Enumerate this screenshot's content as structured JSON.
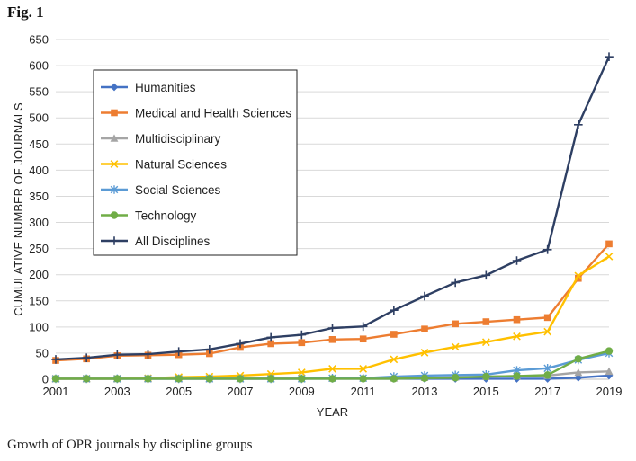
{
  "figure_label": "Fig. 1",
  "caption": "Growth of OPR journals by discipline groups",
  "chart_data": {
    "type": "line",
    "title": "",
    "xlabel": "YEAR",
    "ylabel": "CUMULATIVE NUMBER OF JOURNALS",
    "x": [
      2001,
      2002,
      2003,
      2004,
      2005,
      2006,
      2007,
      2008,
      2009,
      2010,
      2011,
      2012,
      2013,
      2014,
      2015,
      2016,
      2017,
      2018,
      2019
    ],
    "x_tick_labels": [
      "2001",
      "2003",
      "2005",
      "2007",
      "2009",
      "2011",
      "2013",
      "2015",
      "2017",
      "2019"
    ],
    "xlim": [
      2001,
      2019
    ],
    "ylim": [
      0,
      650
    ],
    "y_ticks": [
      0,
      50,
      100,
      150,
      200,
      250,
      300,
      350,
      400,
      450,
      500,
      550,
      600,
      650
    ],
    "legend_position": "top-left",
    "series": [
      {
        "name": "Humanities",
        "color": "#4472c4",
        "marker": "diamond",
        "values": [
          1,
          1,
          1,
          1,
          1,
          1,
          1,
          1,
          1,
          1,
          1,
          1,
          1,
          1,
          1,
          1,
          1,
          3,
          7
        ]
      },
      {
        "name": "Medical and Health Sciences",
        "color": "#ed7d31",
        "marker": "square",
        "values": [
          36,
          39,
          45,
          46,
          47,
          49,
          61,
          68,
          70,
          76,
          77,
          86,
          96,
          106,
          110,
          114,
          118,
          193,
          259
        ]
      },
      {
        "name": "Multidisciplinary",
        "color": "#a5a5a5",
        "marker": "triangle",
        "values": [
          1,
          1,
          1,
          1,
          1,
          1,
          1,
          1,
          1,
          2,
          2,
          2,
          3,
          4,
          5,
          6,
          7,
          13,
          15
        ]
      },
      {
        "name": "Natural Sciences",
        "color": "#ffc000",
        "marker": "x",
        "values": [
          1,
          1,
          1,
          2,
          4,
          5,
          7,
          10,
          13,
          20,
          20,
          38,
          51,
          62,
          71,
          82,
          91,
          198,
          235
        ]
      },
      {
        "name": "Social Sciences",
        "color": "#5b9bd5",
        "marker": "star",
        "values": [
          1,
          1,
          1,
          1,
          1,
          1,
          1,
          1,
          1,
          2,
          2,
          5,
          7,
          8,
          9,
          17,
          21,
          37,
          50
        ]
      },
      {
        "name": "Technology",
        "color": "#70ad47",
        "marker": "circle",
        "values": [
          1,
          1,
          1,
          1,
          1,
          1,
          1,
          1,
          1,
          1,
          1,
          1,
          2,
          3,
          5,
          6,
          8,
          39,
          54
        ]
      },
      {
        "name": "All Disciplines",
        "color": "#2e3f63",
        "marker": "plus",
        "values": [
          38,
          41,
          47,
          48,
          53,
          57,
          68,
          80,
          85,
          98,
          101,
          132,
          159,
          185,
          199,
          227,
          248,
          487,
          617
        ]
      }
    ]
  }
}
